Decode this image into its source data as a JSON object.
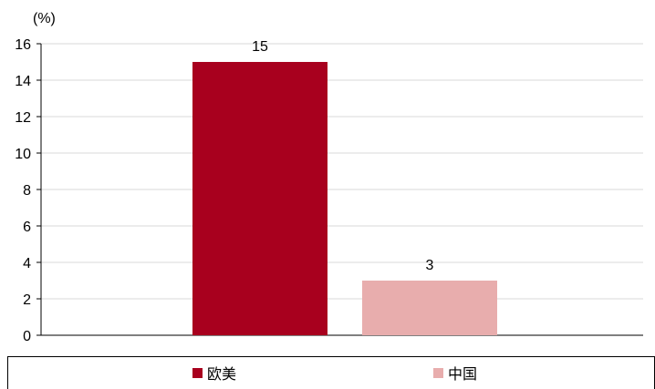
{
  "chart_data": {
    "type": "bar",
    "title": "",
    "ylabel": "(%)",
    "xlabel": "",
    "ylim": [
      0,
      16
    ],
    "yticks": [
      0,
      2,
      4,
      6,
      8,
      10,
      12,
      14,
      16
    ],
    "grid": true,
    "legend_position": "bottom",
    "categories": [
      "欧美",
      "中国"
    ],
    "values": [
      15,
      3
    ],
    "data_labels": [
      "15",
      "3"
    ],
    "colors": [
      "#a8001e",
      "#e8adad"
    ],
    "legend": [
      {
        "label": "欧美",
        "color": "#a8001e"
      },
      {
        "label": "中国",
        "color": "#e8adad"
      }
    ]
  }
}
